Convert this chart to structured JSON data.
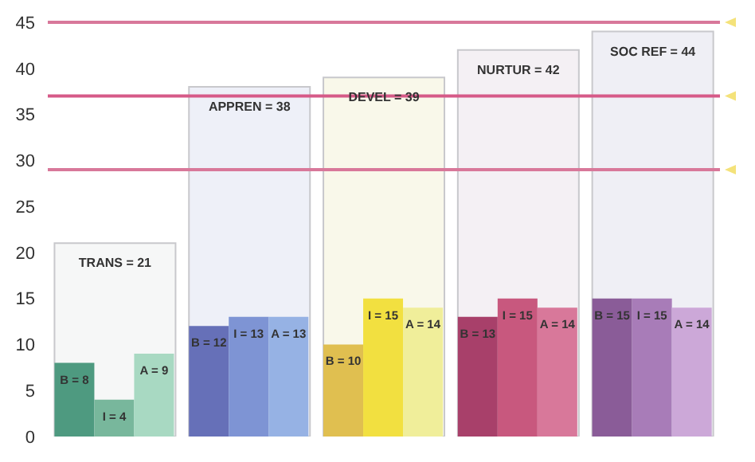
{
  "chart_data": {
    "type": "bar",
    "categories": [
      null,
      null,
      null,
      null,
      null
    ],
    "series": [
      {
        "colors": [
          "#f6f7f7",
          "#eef0f8",
          "#f9f8ea",
          "#f4f0f4",
          "#efeff5"
        ],
        "values": [
          21,
          38,
          39,
          42,
          44
        ],
        "value_labels": [
          "TRANS = 21",
          "APPREN = 38",
          "DEVEL = 39",
          "NURTUR = 42",
          "SOC REF = 44"
        ]
      },
      {
        "colors": [
          "#4e9a80",
          "#6670b8",
          "#e0bf50",
          "#a8406a",
          "#8a5c98"
        ],
        "values": [
          8,
          12,
          10,
          13,
          15
        ],
        "value_labels": [
          "B = 8",
          "B = 12",
          "B = 10",
          "B = 13",
          "B = 15"
        ]
      },
      {
        "colors": [
          "#78b79c",
          "#7e94d4",
          "#f2e040",
          "#c8587e",
          "#a87cb8"
        ],
        "values": [
          4,
          13,
          15,
          15,
          15
        ],
        "value_labels": [
          "I = 4",
          "I = 13",
          "I = 15",
          "I = 15",
          "I = 15"
        ]
      },
      {
        "colors": [
          "#a8d9c2",
          "#96b2e4",
          "#f0ee9a",
          "#d8789a",
          "#cca8d8"
        ],
        "values": [
          9,
          13,
          14,
          14,
          14
        ],
        "value_labels": [
          "A = 9",
          "A = 13",
          "A = 14",
          "A = 14",
          "A = 14"
        ]
      }
    ],
    "ylim": [
      0,
      45
    ],
    "yticks": [
      0,
      5,
      10,
      15,
      20,
      25,
      30,
      35,
      40,
      45
    ],
    "grid": false,
    "tick_labels": "y",
    "ref_lines": [
      {
        "axis": "y",
        "value": 45,
        "color": "#d8789a"
      },
      {
        "axis": "y",
        "value": 37,
        "color": "#d65a88"
      },
      {
        "axis": "y",
        "value": 29,
        "color": "#d8789a"
      }
    ]
  }
}
